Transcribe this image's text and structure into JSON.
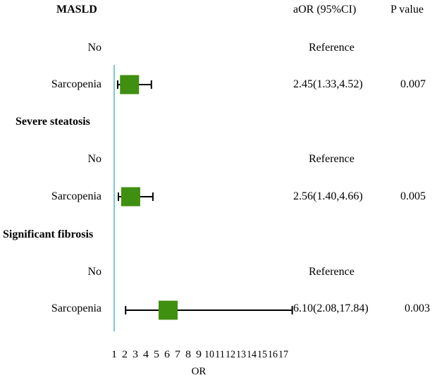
{
  "headers": {
    "section_first": "MASLD",
    "aor": "aOR (95%CI)",
    "pvalue": "P value"
  },
  "groups": [
    {
      "title": "MASLD",
      "ref_label": "No",
      "ref_text": "Reference",
      "row_label": "Sarcopenia",
      "aor_text": "2.45(1.33,4.52)",
      "p_text": "0.007"
    },
    {
      "title": "Severe steatosis",
      "ref_label": "No",
      "ref_text": "Reference",
      "row_label": "Sarcopenia",
      "aor_text": "2.56(1.40,4.66)",
      "p_text": "0.005"
    },
    {
      "title": "Significant fibrosis",
      "ref_label": "No",
      "ref_text": "Reference",
      "row_label": "Sarcopenia",
      "aor_text": "6.10(2.08,17.84)",
      "p_text": "0.003"
    }
  ],
  "chart_data": {
    "type": "forest",
    "xlabel": "OR",
    "x_ticks": [
      1,
      2,
      3,
      4,
      5,
      6,
      7,
      8,
      9,
      10,
      11,
      12,
      13,
      14,
      15,
      16,
      17
    ],
    "xlim": [
      1,
      17
    ],
    "reference_line": 1,
    "series": [
      {
        "name": "MASLD",
        "or": 2.45,
        "lower": 1.33,
        "upper": 4.52
      },
      {
        "name": "Severe steatosis",
        "or": 2.56,
        "lower": 1.4,
        "upper": 4.66
      },
      {
        "name": "Significant fibrosis",
        "or": 6.1,
        "lower": 2.08,
        "upper": 17.84
      }
    ],
    "colors": {
      "marker": "#3f8f10",
      "reference_line": "#4bb8c4",
      "whisker": "#000000"
    }
  }
}
